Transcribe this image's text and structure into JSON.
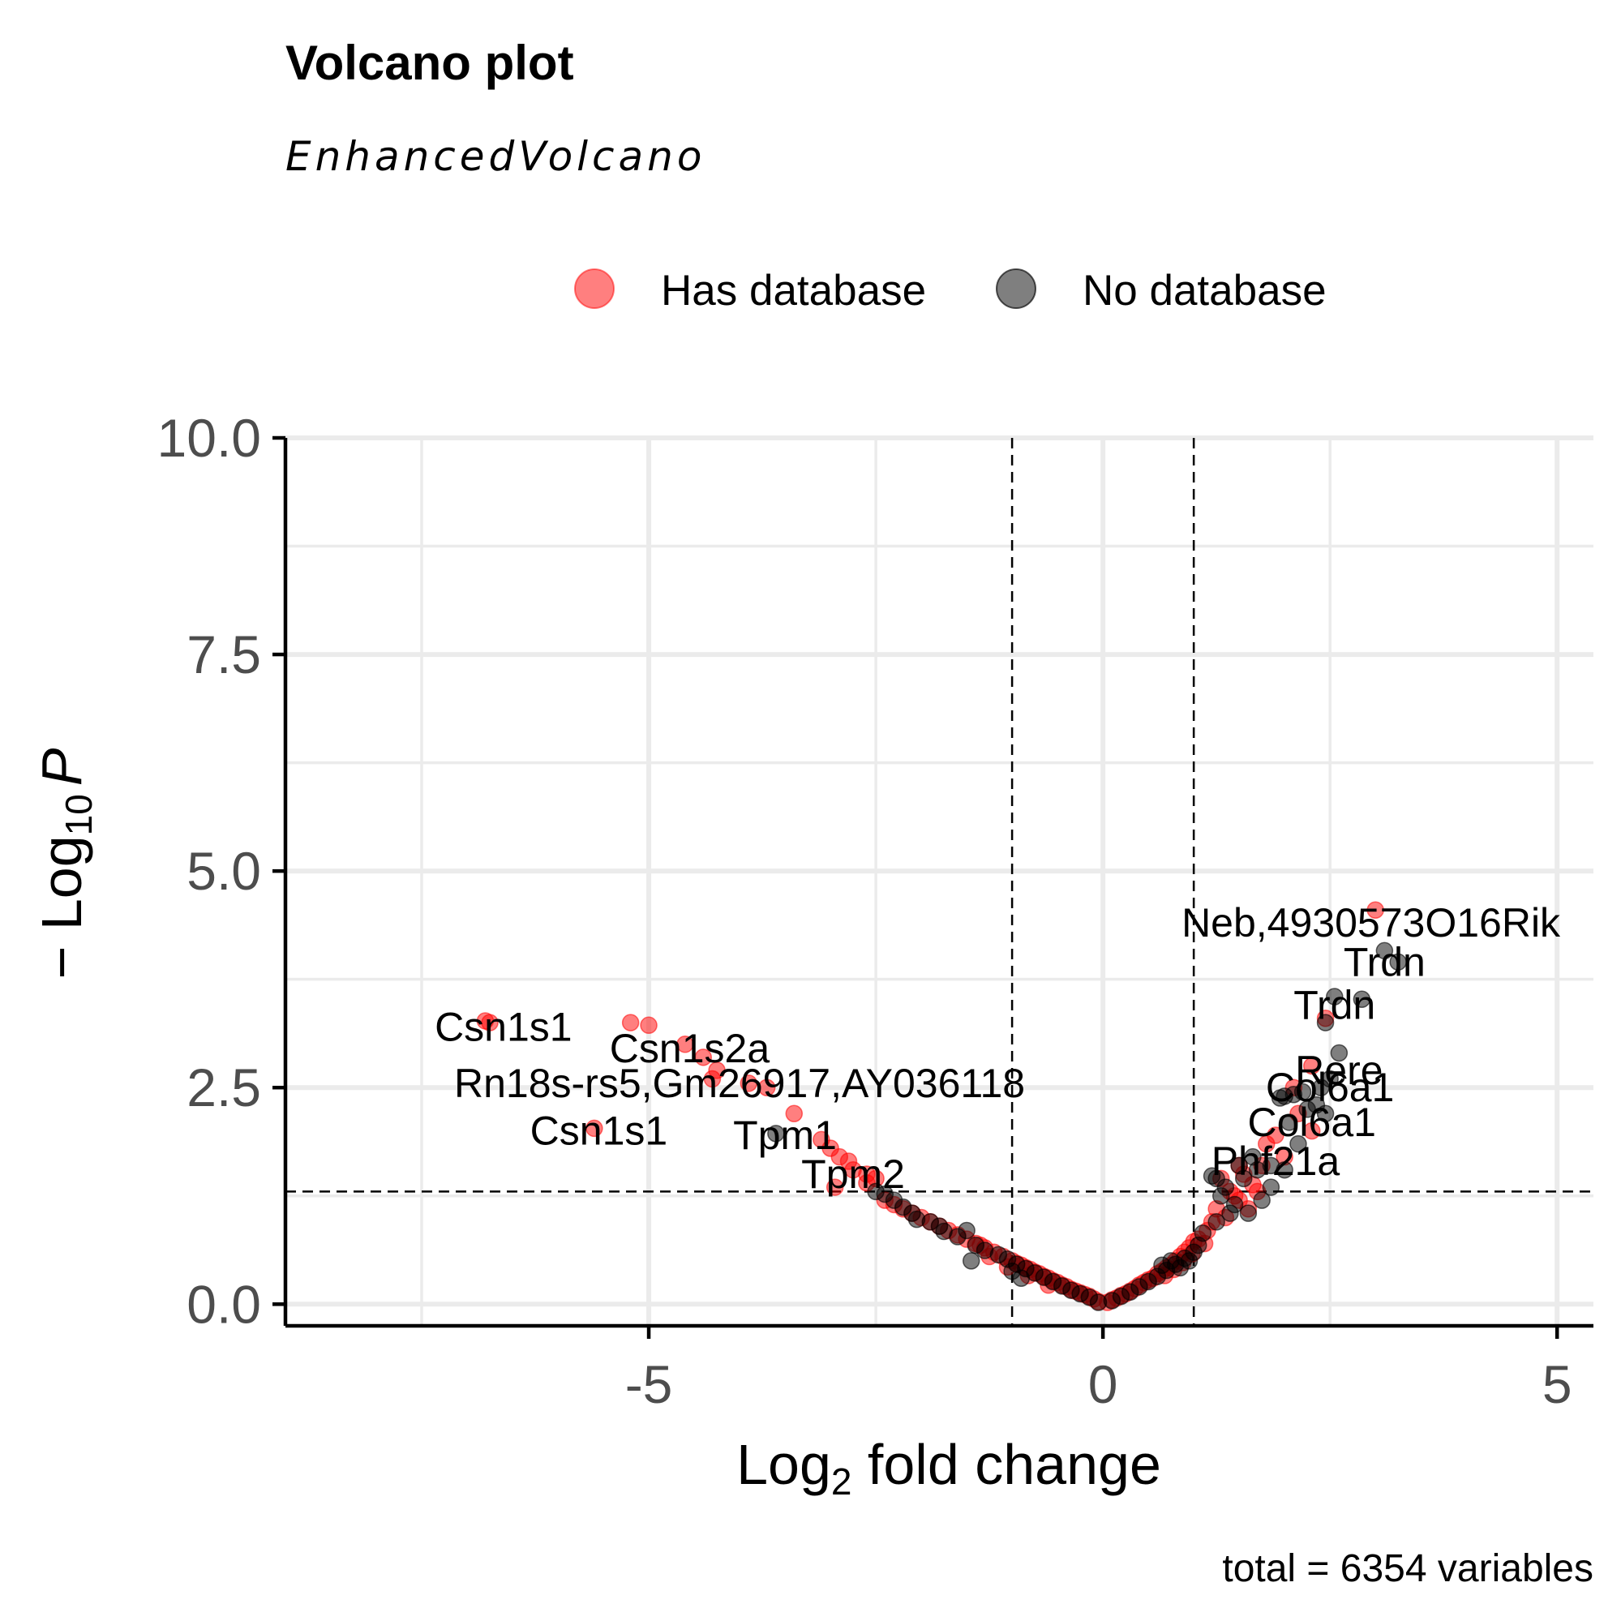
{
  "chart_data": {
    "type": "scatter",
    "title": "Volcano plot",
    "subtitle": "EnhancedVolcano",
    "xlabel_main": "Log",
    "xlabel_sub": "2",
    "xlabel_rest": " fold change",
    "ylabel_main": "− Log",
    "ylabel_sub": "10",
    "ylabel_italic": "P",
    "caption": "total = 6354 variables",
    "xlim": [
      -9.0,
      5.4
    ],
    "ylim": [
      -0.25,
      10.0
    ],
    "x_ticks": [
      -5,
      0,
      5
    ],
    "x_tick_labels": [
      "-5",
      "0",
      "5"
    ],
    "y_ticks": [
      0,
      2.5,
      5,
      7.5,
      10
    ],
    "y_tick_labels": [
      "0.0",
      "2.5",
      "5.0",
      "7.5",
      "10.0"
    ],
    "fc_cutoff": [
      -1,
      1
    ],
    "p_cutoff": 1.3,
    "legend_position": "top",
    "series": [
      {
        "name": "Has database",
        "color": "#ff0000",
        "points": [
          [
            -6.8,
            3.27
          ],
          [
            -6.75,
            3.25
          ],
          [
            -5.2,
            3.25
          ],
          [
            -5.0,
            3.22
          ],
          [
            -4.6,
            3.0
          ],
          [
            -4.4,
            2.85
          ],
          [
            -4.25,
            2.7
          ],
          [
            -4.3,
            2.6
          ],
          [
            -3.9,
            2.55
          ],
          [
            -3.7,
            2.5
          ],
          [
            -5.6,
            2.03
          ],
          [
            -3.4,
            2.2
          ],
          [
            -3.1,
            1.9
          ],
          [
            -3.0,
            1.8
          ],
          [
            -2.9,
            1.7
          ],
          [
            -2.8,
            1.65
          ],
          [
            -2.75,
            1.55
          ],
          [
            -2.6,
            1.5
          ],
          [
            -2.5,
            1.45
          ],
          [
            -2.95,
            1.35
          ],
          [
            -2.6,
            1.4
          ],
          [
            3.0,
            4.55
          ],
          [
            2.45,
            3.3
          ],
          [
            2.3,
            2.75
          ],
          [
            2.1,
            2.5
          ],
          [
            2.15,
            2.2
          ],
          [
            2.3,
            2.0
          ],
          [
            1.9,
            1.95
          ],
          [
            1.8,
            1.85
          ],
          [
            2.0,
            1.7
          ],
          [
            1.5,
            1.6
          ],
          [
            1.75,
            1.6
          ],
          [
            1.3,
            1.45
          ],
          [
            1.4,
            1.3
          ],
          [
            1.5,
            1.2
          ],
          [
            1.6,
            1.1
          ],
          [
            1.35,
            1.0
          ],
          [
            1.7,
            1.3
          ],
          [
            1.55,
            1.5
          ],
          [
            1.65,
            1.38
          ],
          [
            1.45,
            1.25
          ],
          [
            1.25,
            1.1
          ],
          [
            1.2,
            0.95
          ],
          [
            1.15,
            0.85
          ],
          [
            1.05,
            0.75
          ],
          [
            1.0,
            0.72
          ],
          [
            0.95,
            0.65
          ],
          [
            0.9,
            0.6
          ],
          [
            0.85,
            0.55
          ],
          [
            0.8,
            0.5
          ],
          [
            0.75,
            0.45
          ],
          [
            0.7,
            0.42
          ],
          [
            0.65,
            0.38
          ],
          [
            0.6,
            0.35
          ],
          [
            0.55,
            0.3
          ],
          [
            0.5,
            0.28
          ],
          [
            0.45,
            0.25
          ],
          [
            0.4,
            0.22
          ],
          [
            0.35,
            0.18
          ],
          [
            0.3,
            0.15
          ],
          [
            0.25,
            0.12
          ],
          [
            0.2,
            0.1
          ],
          [
            0.15,
            0.07
          ],
          [
            0.1,
            0.05
          ],
          [
            0.05,
            0.02
          ],
          [
            1.12,
            0.7
          ],
          [
            0.98,
            0.58
          ],
          [
            0.88,
            0.48
          ],
          [
            0.78,
            0.4
          ],
          [
            0.68,
            0.33
          ],
          [
            -0.05,
            0.03
          ],
          [
            -0.1,
            0.06
          ],
          [
            -0.15,
            0.09
          ],
          [
            -0.2,
            0.11
          ],
          [
            -0.25,
            0.13
          ],
          [
            -0.3,
            0.15
          ],
          [
            -0.35,
            0.17
          ],
          [
            -0.4,
            0.2
          ],
          [
            -0.45,
            0.22
          ],
          [
            -0.5,
            0.25
          ],
          [
            -0.55,
            0.27
          ],
          [
            -0.6,
            0.3
          ],
          [
            -0.65,
            0.32
          ],
          [
            -0.7,
            0.35
          ],
          [
            -0.75,
            0.37
          ],
          [
            -0.8,
            0.4
          ],
          [
            -0.85,
            0.42
          ],
          [
            -0.9,
            0.45
          ],
          [
            -0.95,
            0.47
          ],
          [
            -1.0,
            0.5
          ],
          [
            -1.1,
            0.55
          ],
          [
            -1.2,
            0.6
          ],
          [
            -1.3,
            0.65
          ],
          [
            -1.4,
            0.7
          ],
          [
            -1.5,
            0.75
          ],
          [
            -1.6,
            0.8
          ],
          [
            -1.7,
            0.85
          ],
          [
            -1.8,
            0.9
          ],
          [
            -1.9,
            0.95
          ],
          [
            -2.0,
            1.0
          ],
          [
            -2.1,
            1.05
          ],
          [
            -2.2,
            1.1
          ],
          [
            -2.3,
            1.15
          ],
          [
            -2.4,
            1.2
          ],
          [
            -1.25,
            0.55
          ],
          [
            -1.05,
            0.43
          ],
          [
            -0.82,
            0.33
          ],
          [
            -0.6,
            0.22
          ],
          [
            -1.35,
            0.68
          ]
        ]
      },
      {
        "name": "No database",
        "color": "#000000",
        "points": [
          [
            3.1,
            4.08
          ],
          [
            3.25,
            3.95
          ],
          [
            2.55,
            3.55
          ],
          [
            2.85,
            3.52
          ],
          [
            2.45,
            3.25
          ],
          [
            2.6,
            2.9
          ],
          [
            2.5,
            2.6
          ],
          [
            2.4,
            2.5
          ],
          [
            2.2,
            2.45
          ],
          [
            2.1,
            2.42
          ],
          [
            2.0,
            2.4
          ],
          [
            1.95,
            2.38
          ],
          [
            2.35,
            2.3
          ],
          [
            2.25,
            2.25
          ],
          [
            2.45,
            2.2
          ],
          [
            2.05,
            2.1
          ],
          [
            2.0,
            1.55
          ],
          [
            1.85,
            1.6
          ],
          [
            1.7,
            1.55
          ],
          [
            1.55,
            1.45
          ],
          [
            1.35,
            1.35
          ],
          [
            1.3,
            1.25
          ],
          [
            1.45,
            1.15
          ],
          [
            1.6,
            1.05
          ],
          [
            1.75,
            1.2
          ],
          [
            1.85,
            1.35
          ],
          [
            2.15,
            1.85
          ],
          [
            1.25,
            0.95
          ],
          [
            1.4,
            1.05
          ],
          [
            1.1,
            0.82
          ],
          [
            1.2,
            1.48
          ],
          [
            1.25,
            1.45
          ],
          [
            1.5,
            1.6
          ],
          [
            1.65,
            1.7
          ],
          [
            -3.6,
            1.97
          ],
          [
            -2.4,
            1.27
          ],
          [
            -2.5,
            1.3
          ],
          [
            -2.3,
            1.2
          ],
          [
            -2.2,
            1.12
          ],
          [
            -2.1,
            1.05
          ],
          [
            -1.9,
            0.95
          ],
          [
            -1.8,
            0.9
          ],
          [
            -1.5,
            0.85
          ],
          [
            -1.6,
            0.78
          ],
          [
            -1.4,
            0.68
          ],
          [
            -1.3,
            0.62
          ],
          [
            -1.15,
            0.57
          ],
          [
            -1.05,
            0.52
          ],
          [
            -0.95,
            0.46
          ],
          [
            -0.85,
            0.41
          ],
          [
            -0.75,
            0.36
          ],
          [
            -0.65,
            0.31
          ],
          [
            -0.55,
            0.26
          ],
          [
            -0.45,
            0.21
          ],
          [
            -0.35,
            0.16
          ],
          [
            -0.25,
            0.12
          ],
          [
            -0.15,
            0.08
          ],
          [
            -0.05,
            0.02
          ],
          [
            -2.05,
            0.98
          ],
          [
            -1.75,
            0.84
          ],
          [
            -1.45,
            0.5
          ],
          [
            -1.0,
            0.38
          ],
          [
            -0.9,
            0.3
          ],
          [
            0.1,
            0.04
          ],
          [
            0.2,
            0.09
          ],
          [
            0.3,
            0.14
          ],
          [
            0.4,
            0.2
          ],
          [
            0.5,
            0.26
          ],
          [
            0.6,
            0.32
          ],
          [
            0.7,
            0.39
          ],
          [
            0.8,
            0.46
          ],
          [
            0.9,
            0.53
          ],
          [
            1.0,
            0.6
          ],
          [
            1.05,
            0.68
          ],
          [
            0.95,
            0.5
          ],
          [
            0.85,
            0.42
          ],
          [
            0.75,
            0.5
          ],
          [
            0.65,
            0.45
          ]
        ]
      }
    ],
    "labels": [
      {
        "text": "Neb,4930573O16Rik",
        "x": 3.0,
        "y": 4.55,
        "lx": 2.95,
        "ly": 4.4
      },
      {
        "text": "Trdn",
        "x": 3.1,
        "y": 4.08,
        "lx": 3.1,
        "ly": 3.95
      },
      {
        "text": "Trdn",
        "x": 2.55,
        "y": 3.55,
        "lx": 2.55,
        "ly": 3.45
      },
      {
        "text": "Csn1s1",
        "x": -6.8,
        "y": 3.27,
        "lx": -6.6,
        "ly": 3.2
      },
      {
        "text": "Csn1s2a",
        "x": -4.6,
        "y": 3.0,
        "lx": -4.55,
        "ly": 2.95
      },
      {
        "text": "Rere",
        "x": 2.6,
        "y": 2.9,
        "lx": 2.6,
        "ly": 2.7
      },
      {
        "text": "Rn18s-rs5,Gm26917,AY036118",
        "x": -3.9,
        "y": 2.55,
        "lx": -4.0,
        "ly": 2.55
      },
      {
        "text": "Col6a1",
        "x": 2.1,
        "y": 2.42,
        "lx": 2.5,
        "ly": 2.5
      },
      {
        "text": "Col6a1",
        "x": 2.15,
        "y": 2.2,
        "lx": 2.3,
        "ly": 2.1
      },
      {
        "text": "Csn1s1",
        "x": -5.6,
        "y": 2.03,
        "lx": -5.55,
        "ly": 2.0
      },
      {
        "text": "Tpm1",
        "x": -3.6,
        "y": 1.97,
        "lx": -3.5,
        "ly": 1.95
      },
      {
        "text": "Phf21a",
        "x": 1.8,
        "y": 1.6,
        "lx": 1.9,
        "ly": 1.65
      },
      {
        "text": "Tpm2",
        "x": -2.8,
        "y": 1.55,
        "lx": -2.75,
        "ly": 1.5
      }
    ]
  }
}
